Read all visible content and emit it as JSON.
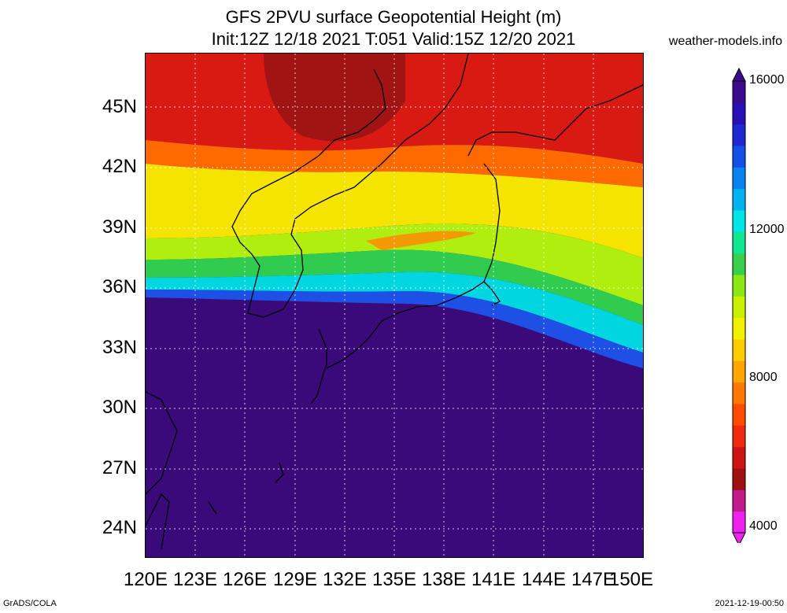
{
  "header": {
    "title_line1": "GFS 2PVU surface Geopotential Height (m)",
    "title_line2": "Init:12Z 12/18 2021 T:051 Valid:15Z 12/20 2021",
    "site": "weather-models.info"
  },
  "axes": {
    "lat_labels": [
      "45N",
      "42N",
      "39N",
      "36N",
      "33N",
      "30N",
      "27N",
      "24N"
    ],
    "lon_labels": [
      "120E",
      "123E",
      "126E",
      "129E",
      "132E",
      "135E",
      "138E",
      "141E",
      "144E",
      "147E",
      "150E"
    ]
  },
  "colorbar": {
    "labels": [
      "16000",
      "12000",
      "8000",
      "4000"
    ],
    "colors": [
      "#ee22ee",
      "#c21a8a",
      "#a01010",
      "#cc1414",
      "#ee2a10",
      "#ff4b00",
      "#ff7800",
      "#ffa500",
      "#ffcc00",
      "#f0f000",
      "#c8f000",
      "#8ce614",
      "#38d04a",
      "#10e690",
      "#00e6e6",
      "#00b4f0",
      "#0a82f0",
      "#1450e6",
      "#1e28d2",
      "#2810b4",
      "#3c0a8c"
    ],
    "min": 4000,
    "max": 16000
  },
  "footer": {
    "credit": "GrADS/COLA",
    "timestamp": "2021-12-19-00:50"
  },
  "map": {
    "region": "Japan / East Asia",
    "lon_range": [
      120,
      150
    ],
    "lat_range": [
      22.5,
      47.5
    ]
  }
}
